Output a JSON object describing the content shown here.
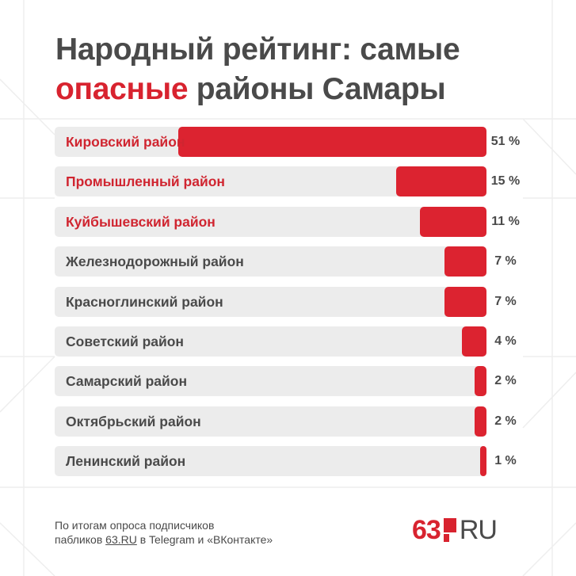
{
  "title": {
    "line1": "Народный рейтинг: самые",
    "accent": "опасные",
    "line2_rest": " районы Самары"
  },
  "colors": {
    "bar": "#dc2330",
    "track": "#ececec",
    "highlight_text": "#d02530",
    "text": "#4a4a4a"
  },
  "chart_data": {
    "type": "bar",
    "orientation": "horizontal",
    "title": "Народный рейтинг: самые опасные районы Самары",
    "categories": [
      "Кировский район",
      "Промышленный район",
      "Куйбышевский район",
      "Железнодорожный район",
      "Красноглинский район",
      "Советский район",
      "Самарский район",
      "Октябрьский район",
      "Ленинский район"
    ],
    "values": [
      51,
      15,
      11,
      7,
      7,
      4,
      2,
      2,
      1
    ],
    "value_labels": [
      "51 %",
      "15 %",
      "11 %",
      "7 %",
      "7 %",
      "4 %",
      "2 %",
      "2 %",
      "1 %"
    ],
    "highlighted": [
      true,
      true,
      true,
      false,
      false,
      false,
      false,
      false,
      false
    ],
    "unit": "%",
    "xlim": [
      0,
      70
    ]
  },
  "footnote": {
    "line1": "По итогам опроса подписчиков",
    "line2_prefix": "пабликов ",
    "line2_link": "63.RU",
    "line2_suffix": " в Telegram и «ВКонтакте»"
  },
  "logo": {
    "number": "63",
    "text": "RU"
  }
}
